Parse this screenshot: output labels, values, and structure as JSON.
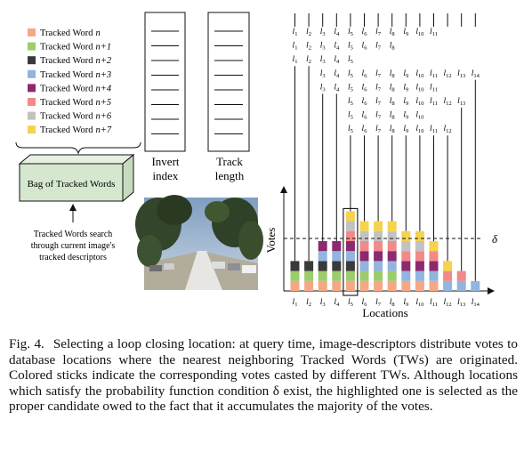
{
  "legend": [
    {
      "label": "Tracked Word",
      "index": "n",
      "color": "#f4a886"
    },
    {
      "label": "Tracked Word",
      "index": "n+1",
      "color": "#9ccc6c"
    },
    {
      "label": "Tracked Word",
      "index": "n+2",
      "color": "#3a3a3a"
    },
    {
      "label": "Tracked Word",
      "index": "n+3",
      "color": "#92b4df"
    },
    {
      "label": "Tracked Word",
      "index": "n+4",
      "color": "#8b2a70"
    },
    {
      "label": "Tracked Word",
      "index": "n+5",
      "color": "#f28a8a"
    },
    {
      "label": "Tracked Word",
      "index": "n+6",
      "color": "#c2c2c2"
    },
    {
      "label": "Tracked Word",
      "index": "n+7",
      "color": "#f4d34e"
    }
  ],
  "bag_label": "Bag of Tracked Words",
  "search_text": [
    "Tracked Words search",
    "through current image's",
    "tracked descriptors"
  ],
  "invert_index_label": [
    "Invert",
    "index"
  ],
  "track_length_label": [
    "Track",
    "length"
  ],
  "tracks": [
    {
      "start": 1,
      "end": 11
    },
    {
      "start": 1,
      "end": 8
    },
    {
      "start": 1,
      "end": 5
    },
    {
      "start": 3,
      "end": 14
    },
    {
      "start": 3,
      "end": 11
    },
    {
      "start": 5,
      "end": 13
    },
    {
      "start": 5,
      "end": 10
    },
    {
      "start": 5,
      "end": 12
    }
  ],
  "location_prefix": "l",
  "axis": {
    "ylabel": "Votes",
    "xlabel": "Locations",
    "threshold_label": "δ",
    "threshold": 5
  },
  "highlighted_location": 5,
  "caption": {
    "label": "Fig. 4.",
    "text": "Selecting a loop closing location: at query time, image-descriptors distribute votes to database locations where the nearest neighboring Tracked Words (TWs) are originated. Colored sticks indicate the corresponding votes casted by different TWs. Although locations which satisfy the probability function condition δ exist, the highlighted one is selected as the proper candidate owed to the fact that it accumulates the majority of the votes."
  },
  "chart_data": {
    "type": "bar",
    "stacked": true,
    "categories": [
      "l1",
      "l2",
      "l3",
      "l4",
      "l5",
      "l6",
      "l7",
      "l8",
      "l9",
      "l10",
      "l11",
      "l12",
      "l13",
      "l14"
    ],
    "series": [
      {
        "name": "Tracked Word n",
        "values": [
          1,
          1,
          1,
          1,
          1,
          1,
          1,
          1,
          1,
          1,
          1,
          0,
          0,
          0
        ]
      },
      {
        "name": "Tracked Word n+1",
        "values": [
          1,
          1,
          1,
          1,
          1,
          1,
          1,
          1,
          0,
          0,
          0,
          0,
          0,
          0
        ]
      },
      {
        "name": "Tracked Word n+2",
        "values": [
          1,
          1,
          1,
          1,
          1,
          0,
          0,
          0,
          0,
          0,
          0,
          0,
          0,
          0
        ]
      },
      {
        "name": "Tracked Word n+3",
        "values": [
          0,
          0,
          1,
          1,
          1,
          1,
          1,
          1,
          1,
          1,
          1,
          1,
          1,
          1
        ]
      },
      {
        "name": "Tracked Word n+4",
        "values": [
          0,
          0,
          1,
          1,
          1,
          1,
          1,
          1,
          1,
          1,
          1,
          0,
          0,
          0
        ]
      },
      {
        "name": "Tracked Word n+5",
        "values": [
          0,
          0,
          0,
          0,
          1,
          1,
          1,
          1,
          1,
          1,
          1,
          1,
          1,
          0
        ]
      },
      {
        "name": "Tracked Word n+6",
        "values": [
          0,
          0,
          0,
          0,
          1,
          1,
          1,
          1,
          1,
          1,
          0,
          0,
          0,
          0
        ]
      },
      {
        "name": "Tracked Word n+7",
        "values": [
          0,
          0,
          0,
          0,
          1,
          1,
          1,
          1,
          1,
          1,
          1,
          1,
          0,
          0
        ]
      }
    ],
    "xlabel": "Locations",
    "ylabel": "Votes",
    "threshold": 5,
    "highlight": "l5"
  }
}
